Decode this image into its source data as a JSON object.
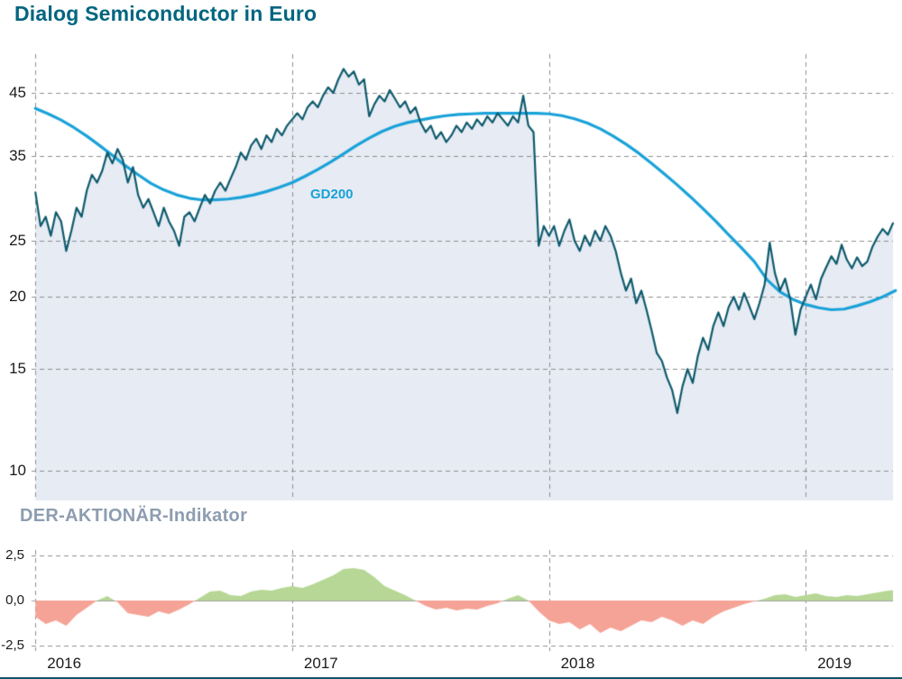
{
  "page": {
    "bottom_rule_color": "#0e5565"
  },
  "chart_data": [
    {
      "type": "line",
      "title": "Dialog Semiconductor in Euro",
      "title_color": "#00657f",
      "yscale": "log",
      "ylim": [
        8.9,
        52.5
      ],
      "xlim": [
        2015.985,
        2019.34
      ],
      "y_ticks": [
        45,
        35,
        25,
        20,
        15,
        10
      ],
      "x_ticks": [
        2016,
        2017,
        2018,
        2019
      ],
      "grid": "dashed",
      "grid_color": "#8e8e8e",
      "axis_text_color": "#1a1a1a",
      "series": [
        {
          "name": "Dialog Semiconductor",
          "color": "#0e5a6d",
          "fill_color": "#e6ebf4",
          "line_width": 2.2,
          "x0": 2016.0,
          "dx": 0.02,
          "values": [
            30.3,
            26.5,
            27.5,
            25.5,
            28.0,
            27.0,
            24.0,
            26.0,
            28.5,
            27.5,
            30.5,
            32.5,
            31.5,
            33.0,
            35.5,
            34.0,
            36.0,
            34.5,
            31.5,
            33.5,
            30.0,
            28.5,
            29.5,
            28.0,
            26.5,
            28.5,
            27.0,
            26.0,
            24.5,
            27.5,
            28.0,
            27.0,
            28.5,
            30.0,
            29.0,
            30.5,
            31.5,
            30.5,
            32.0,
            33.5,
            35.5,
            34.5,
            36.5,
            37.5,
            36.0,
            38.0,
            37.0,
            39.0,
            38.0,
            39.5,
            40.5,
            41.5,
            40.5,
            42.5,
            43.5,
            42.5,
            44.5,
            46.0,
            45.0,
            47.5,
            49.5,
            48.0,
            49.0,
            46.5,
            47.5,
            41.0,
            43.0,
            44.5,
            43.5,
            45.5,
            44.0,
            42.5,
            43.5,
            41.5,
            42.5,
            40.0,
            38.5,
            39.5,
            37.5,
            38.5,
            37.0,
            38.0,
            39.5,
            38.5,
            40.0,
            39.0,
            40.5,
            39.5,
            41.0,
            40.0,
            41.5,
            40.5,
            39.5,
            41.0,
            40.0,
            44.5,
            39.5,
            38.5,
            24.5,
            26.5,
            25.5,
            26.5,
            24.5,
            26.0,
            27.2,
            25.0,
            24.0,
            25.5,
            24.5,
            26.0,
            25.0,
            26.5,
            25.5,
            24.0,
            22.0,
            20.5,
            21.5,
            19.5,
            20.5,
            19.0,
            17.5,
            16.0,
            15.5,
            14.5,
            13.8,
            12.6,
            14.0,
            15.0,
            14.2,
            15.8,
            17.0,
            16.2,
            17.8,
            18.8,
            17.8,
            19.2,
            20.0,
            19.0,
            20.3,
            19.3,
            18.3,
            19.5,
            21.0,
            24.8,
            22.0,
            20.5,
            21.5,
            19.8,
            17.2,
            19.0,
            20.0,
            21.0,
            19.8,
            21.5,
            22.5,
            23.5,
            22.8,
            24.6,
            23.2,
            22.4,
            23.4,
            22.6,
            23.0,
            24.4,
            25.4,
            26.2,
            25.6,
            26.8
          ]
        },
        {
          "name": "GD200",
          "color": "#19a2d8",
          "line_width": 3.2,
          "x0": 2016.0,
          "dx": 0.05,
          "values": [
            42.3,
            41.4,
            40.4,
            39.2,
            37.9,
            36.5,
            35.1,
            33.7,
            32.5,
            31.4,
            30.6,
            30.0,
            29.6,
            29.4,
            29.4,
            29.5,
            29.7,
            30.0,
            30.4,
            30.9,
            31.5,
            32.3,
            33.2,
            34.2,
            35.3,
            36.5,
            37.6,
            38.6,
            39.4,
            40.0,
            40.4,
            40.8,
            41.1,
            41.3,
            41.4,
            41.5,
            41.5,
            41.5,
            41.5,
            41.5,
            41.4,
            41.1,
            40.6,
            39.9,
            39.0,
            37.9,
            36.7,
            35.4,
            34.0,
            32.6,
            31.2,
            29.8,
            28.4,
            27.0,
            25.6,
            24.3,
            23.0,
            21.4,
            20.4,
            19.8,
            19.4,
            19.15,
            19.0,
            19.05,
            19.3,
            19.6,
            20.0,
            20.5
          ]
        }
      ]
    },
    {
      "type": "area",
      "title": "DER-AKTIONÄR-Indikator",
      "title_color": "#8d9db0",
      "ylim": [
        -2.8,
        2.8
      ],
      "y_ticks": [
        2.5,
        0,
        -2.5
      ],
      "y_tick_labels": [
        "2,5",
        "0,0",
        "-2,5"
      ],
      "positive_color": "#b6d795",
      "negative_color": "#f5a396",
      "zero_line_color": "#a3a3a3",
      "x0": 2016.0,
      "dx": 0.04,
      "values": [
        -0.9,
        -1.3,
        -1.1,
        -1.4,
        -0.8,
        -0.4,
        0.0,
        0.25,
        -0.1,
        -0.7,
        -0.8,
        -0.9,
        -0.6,
        -0.75,
        -0.5,
        -0.2,
        0.15,
        0.5,
        0.55,
        0.3,
        0.25,
        0.5,
        0.6,
        0.55,
        0.7,
        0.8,
        0.7,
        0.9,
        1.15,
        1.4,
        1.75,
        1.8,
        1.7,
        1.3,
        0.8,
        0.55,
        0.3,
        0.0,
        -0.3,
        -0.5,
        -0.4,
        -0.55,
        -0.45,
        -0.5,
        -0.3,
        -0.15,
        0.1,
        0.3,
        0.0,
        -0.6,
        -1.1,
        -1.3,
        -1.2,
        -1.6,
        -1.3,
        -1.8,
        -1.5,
        -1.7,
        -1.4,
        -1.1,
        -1.2,
        -0.9,
        -1.1,
        -1.4,
        -1.1,
        -1.3,
        -0.9,
        -0.6,
        -0.4,
        -0.2,
        -0.05,
        0.1,
        0.3,
        0.35,
        0.2,
        0.3,
        0.4,
        0.25,
        0.2,
        0.3,
        0.25,
        0.35,
        0.45,
        0.55,
        0.6
      ]
    }
  ]
}
